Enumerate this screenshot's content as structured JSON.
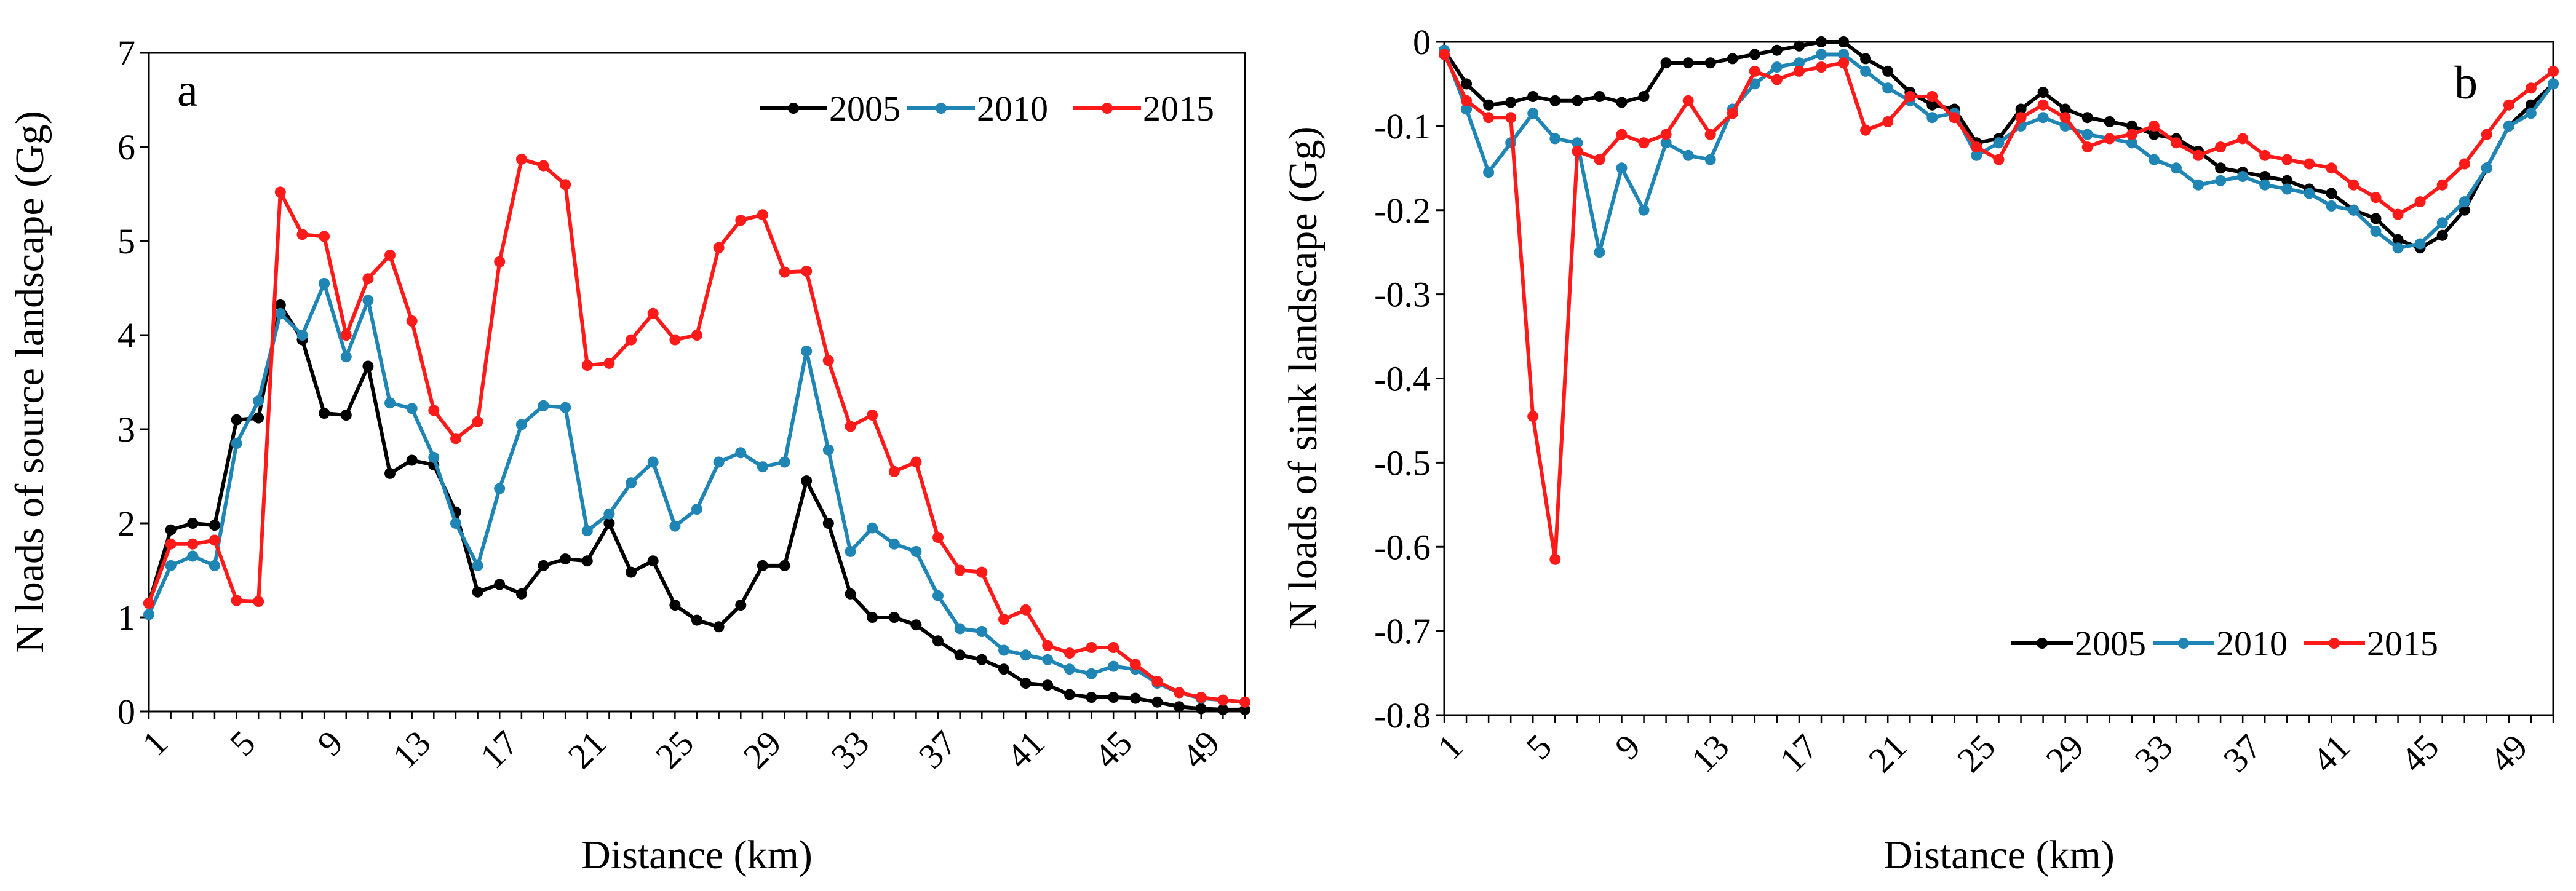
{
  "colors": {
    "2005": "#000000",
    "2010": "#1f85b5",
    "2015": "#ff1a1a"
  },
  "chart_data": [
    {
      "type": "line",
      "panel_label": "a",
      "title": "",
      "xlabel": "Distance (km)",
      "ylabel": "N loads of source landscape (Gg)",
      "xlim": [
        1,
        51
      ],
      "ylim": [
        0,
        7
      ],
      "yticks": [
        "0",
        "1",
        "2",
        "3",
        "4",
        "5",
        "6",
        "7"
      ],
      "xticks": [
        "1",
        "5",
        "9",
        "13",
        "17",
        "21",
        "25",
        "29",
        "33",
        "37",
        "41",
        "45",
        "49"
      ],
      "legend": "top-right",
      "x": [
        1,
        2,
        3,
        4,
        5,
        6,
        7,
        8,
        9,
        10,
        11,
        12,
        13,
        14,
        15,
        16,
        17,
        18,
        19,
        20,
        21,
        22,
        23,
        24,
        25,
        26,
        27,
        28,
        29,
        30,
        31,
        32,
        33,
        34,
        35,
        36,
        37,
        38,
        39,
        40,
        41,
        42,
        43,
        44,
        45,
        46,
        47,
        48,
        49,
        50,
        51
      ],
      "series": [
        {
          "name": "2005",
          "values": [
            1.15,
            1.93,
            2.0,
            1.98,
            3.1,
            3.12,
            4.32,
            3.95,
            3.17,
            3.15,
            3.67,
            2.53,
            2.67,
            2.62,
            2.12,
            1.27,
            1.35,
            1.25,
            1.55,
            1.62,
            1.6,
            2.0,
            1.48,
            1.6,
            1.13,
            0.97,
            0.9,
            1.13,
            1.55,
            1.55,
            2.45,
            2.0,
            1.25,
            1.0,
            1.0,
            0.92,
            0.75,
            0.6,
            0.55,
            0.45,
            0.3,
            0.28,
            0.18,
            0.15,
            0.15,
            0.14,
            0.1,
            0.05,
            0.03,
            0.02,
            0.02
          ]
        },
        {
          "name": "2010",
          "values": [
            1.03,
            1.55,
            1.65,
            1.55,
            2.85,
            3.3,
            4.23,
            4.0,
            4.55,
            3.77,
            4.37,
            3.28,
            3.22,
            2.7,
            2.0,
            1.55,
            2.37,
            3.05,
            3.25,
            3.23,
            1.92,
            2.1,
            2.43,
            2.65,
            1.97,
            2.15,
            2.65,
            2.75,
            2.6,
            2.65,
            3.83,
            2.78,
            1.7,
            1.95,
            1.78,
            1.7,
            1.23,
            0.88,
            0.85,
            0.65,
            0.6,
            0.55,
            0.45,
            0.4,
            0.48,
            0.45,
            0.3,
            0.2,
            0.14,
            0.12,
            0.1
          ]
        },
        {
          "name": "2015",
          "values": [
            1.15,
            1.78,
            1.78,
            1.82,
            1.18,
            1.17,
            5.52,
            5.07,
            5.05,
            4.0,
            4.6,
            4.85,
            4.15,
            3.2,
            2.9,
            3.08,
            4.78,
            5.87,
            5.8,
            5.6,
            3.68,
            3.7,
            3.95,
            4.23,
            3.95,
            4.0,
            4.93,
            5.22,
            5.28,
            4.67,
            4.68,
            3.73,
            3.03,
            3.15,
            2.55,
            2.65,
            1.85,
            1.5,
            1.48,
            0.98,
            1.08,
            0.7,
            0.62,
            0.68,
            0.68,
            0.5,
            0.32,
            0.2,
            0.15,
            0.12,
            0.1
          ]
        }
      ]
    },
    {
      "type": "line",
      "panel_label": "b",
      "title": "",
      "xlabel": "Distance (km)",
      "ylabel": "N loads of sink landscape (Gg)",
      "xlim": [
        1,
        51
      ],
      "ylim": [
        -0.8,
        0
      ],
      "yticks": [
        "0",
        "-0.1",
        "-0.2",
        "-0.3",
        "-0.4",
        "-0.5",
        "-0.6",
        "-0.7",
        "-0.8"
      ],
      "xticks": [
        "1",
        "5",
        "9",
        "13",
        "17",
        "21",
        "25",
        "29",
        "33",
        "37",
        "41",
        "45",
        "49"
      ],
      "legend": "bottom-right",
      "x": [
        1,
        2,
        3,
        4,
        5,
        6,
        7,
        8,
        9,
        10,
        11,
        12,
        13,
        14,
        15,
        16,
        17,
        18,
        19,
        20,
        21,
        22,
        23,
        24,
        25,
        26,
        27,
        28,
        29,
        30,
        31,
        32,
        33,
        34,
        35,
        36,
        37,
        38,
        39,
        40,
        41,
        42,
        43,
        44,
        45,
        46,
        47,
        48,
        49,
        50,
        51
      ],
      "series": [
        {
          "name": "2005",
          "values": [
            -0.01,
            -0.05,
            -0.075,
            -0.072,
            -0.065,
            -0.07,
            -0.07,
            -0.065,
            -0.072,
            -0.065,
            -0.025,
            -0.025,
            -0.025,
            -0.02,
            -0.015,
            -0.01,
            -0.005,
            0.0,
            0.0,
            -0.02,
            -0.035,
            -0.06,
            -0.075,
            -0.08,
            -0.12,
            -0.115,
            -0.08,
            -0.06,
            -0.08,
            -0.09,
            -0.095,
            -0.1,
            -0.11,
            -0.115,
            -0.13,
            -0.15,
            -0.155,
            -0.16,
            -0.165,
            -0.175,
            -0.18,
            -0.2,
            -0.21,
            -0.235,
            -0.245,
            -0.23,
            -0.2,
            -0.15,
            -0.1,
            -0.075,
            -0.05
          ]
        },
        {
          "name": "2010",
          "values": [
            -0.01,
            -0.08,
            -0.155,
            -0.12,
            -0.085,
            -0.115,
            -0.12,
            -0.25,
            -0.15,
            -0.2,
            -0.12,
            -0.135,
            -0.14,
            -0.08,
            -0.05,
            -0.03,
            -0.025,
            -0.015,
            -0.015,
            -0.035,
            -0.055,
            -0.07,
            -0.09,
            -0.085,
            -0.135,
            -0.12,
            -0.1,
            -0.09,
            -0.1,
            -0.11,
            -0.115,
            -0.12,
            -0.14,
            -0.15,
            -0.17,
            -0.165,
            -0.16,
            -0.17,
            -0.175,
            -0.18,
            -0.195,
            -0.2,
            -0.225,
            -0.245,
            -0.24,
            -0.215,
            -0.19,
            -0.15,
            -0.1,
            -0.085,
            -0.05
          ]
        },
        {
          "name": "2015",
          "values": [
            -0.015,
            -0.07,
            -0.09,
            -0.09,
            -0.445,
            -0.615,
            -0.13,
            -0.14,
            -0.11,
            -0.12,
            -0.11,
            -0.07,
            -0.11,
            -0.085,
            -0.035,
            -0.045,
            -0.035,
            -0.03,
            -0.025,
            -0.105,
            -0.095,
            -0.065,
            -0.065,
            -0.09,
            -0.125,
            -0.14,
            -0.09,
            -0.075,
            -0.09,
            -0.125,
            -0.115,
            -0.11,
            -0.1,
            -0.12,
            -0.135,
            -0.125,
            -0.115,
            -0.135,
            -0.14,
            -0.145,
            -0.15,
            -0.17,
            -0.185,
            -0.205,
            -0.19,
            -0.17,
            -0.145,
            -0.11,
            -0.075,
            -0.055,
            -0.035
          ]
        }
      ]
    }
  ]
}
